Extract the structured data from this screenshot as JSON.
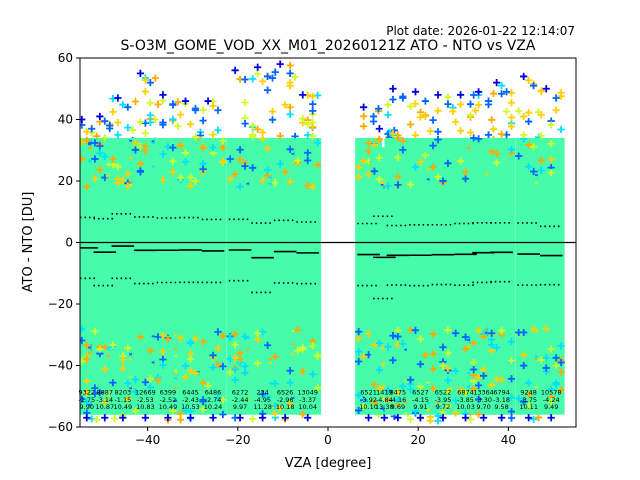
{
  "plot_date": "Plot date: 2026-01-22 12:14:07",
  "chart_data": {
    "type": "scatter",
    "title": "S-O3M_GOME_VOD_XX_M01_20260121Z ATO - NTO vs VZA",
    "xlabel": "VZA [degree]",
    "ylabel": "ATO - NTO [DU]",
    "xlim": [
      -55,
      55
    ],
    "ylim": [
      -60,
      60
    ],
    "xticks": [
      -40,
      -20,
      0,
      20,
      40
    ],
    "yticks": [
      -60,
      -40,
      -20,
      0,
      20,
      40,
      60
    ],
    "zero_line": 0,
    "colors": {
      "density_low": "#46fcaa",
      "density_cyan": "#00e0ff",
      "density_mid": "#cdfc28",
      "density_yellow": "#ffd000",
      "density_orange": "#ffaa00",
      "density_blue": "#0066ff",
      "density_navy": "#0000e6",
      "mean_line": "#000000",
      "std_line": "#000000"
    },
    "columns": [
      {
        "vza": -53.5,
        "n": "9322",
        "mean": "-1.75",
        "std": "9.90",
        "mean_v": -1.75,
        "std_v": 9.9,
        "ymin": -58,
        "ymax": 40
      },
      {
        "vza": -49.5,
        "n": "8887",
        "mean": "-3.14",
        "std": "10.87",
        "mean_v": -3.14,
        "std_v": 10.87,
        "ymin": -59,
        "ymax": 41
      },
      {
        "vza": -45.5,
        "n": "8203",
        "mean": "-1.15",
        "std": "10.49",
        "mean_v": -1.15,
        "std_v": 10.49,
        "ymin": -58,
        "ymax": 47
      },
      {
        "vza": -40.5,
        "n": "12669",
        "mean": "-2.53",
        "std": "10.83",
        "mean_v": -2.53,
        "std_v": 10.83,
        "ymin": -58,
        "ymax": 55
      },
      {
        "vza": -35.5,
        "n": "6399",
        "mean": "-2.52",
        "std": "10.49",
        "mean_v": -2.52,
        "std_v": 10.49,
        "ymin": -58,
        "ymax": 48
      },
      {
        "vza": -30.5,
        "n": "6445",
        "mean": "-2.43",
        "std": "10.53",
        "mean_v": -2.43,
        "std_v": 10.53,
        "ymin": -58,
        "ymax": 46
      },
      {
        "vza": -25.5,
        "n": "6486",
        "mean": "-2.74",
        "std": "10.24",
        "mean_v": -2.74,
        "std_v": 10.24,
        "ymin": -58,
        "ymax": 46
      },
      {
        "vza": -19.5,
        "n": "6272",
        "mean": "-2.44",
        "std": "9.97",
        "mean_v": -2.44,
        "std_v": 9.97,
        "ymin": -58,
        "ymax": 56
      },
      {
        "vza": -14.5,
        "n": "234",
        "mean": "-4.95",
        "std": "11.28",
        "mean_v": -4.95,
        "std_v": 11.28,
        "ymin": -58,
        "ymax": 57
      },
      {
        "vza": -9.5,
        "n": "6526",
        "mean": "-2.96",
        "std": "10.18",
        "mean_v": -2.96,
        "std_v": 10.18,
        "ymin": -58,
        "ymax": 58
      },
      {
        "vza": -4.5,
        "n": "13049",
        "mean": "-3.37",
        "std": "10.04",
        "mean_v": -3.37,
        "std_v": 10.04,
        "ymin": -58,
        "ymax": 48
      },
      {
        "vza": 9.0,
        "n": "6521",
        "mean": "-3.92",
        "std": "10.10",
        "mean_v": -3.92,
        "std_v": 10.1,
        "ymin": -58,
        "ymax": 44
      },
      {
        "vza": 12.5,
        "n": "1419",
        "mean": "-4.84",
        "std": "13.38",
        "mean_v": -4.84,
        "std_v": 13.38,
        "ymin": -58,
        "ymax": 37
      },
      {
        "vza": 15.5,
        "n": "8475",
        "mean": "-4.16",
        "std": "9.69",
        "mean_v": -4.16,
        "std_v": 9.69,
        "ymin": -58,
        "ymax": 50
      },
      {
        "vza": 20.5,
        "n": "6527",
        "mean": "-4.15",
        "std": "9.91",
        "mean_v": -4.15,
        "std_v": 9.91,
        "ymin": -58,
        "ymax": 49
      },
      {
        "vza": 25.5,
        "n": "6522",
        "mean": "-3.95",
        "std": "9.72",
        "mean_v": -3.95,
        "std_v": 9.72,
        "ymin": -58,
        "ymax": 48
      },
      {
        "vza": 30.5,
        "n": "6874",
        "mean": "-3.85",
        "std": "10.03",
        "mean_v": -3.85,
        "std_v": 10.03,
        "ymin": -58,
        "ymax": 48
      },
      {
        "vza": 34.5,
        "n": "13364",
        "mean": "-3.30",
        "std": "9.70",
        "mean_v": -3.3,
        "std_v": 9.7,
        "ymin": -58,
        "ymax": 49
      },
      {
        "vza": 38.5,
        "n": "6794",
        "mean": "-3.18",
        "std": "9.58",
        "mean_v": -3.18,
        "std_v": 9.58,
        "ymin": -58,
        "ymax": 52
      },
      {
        "vza": 44.5,
        "n": "9248",
        "mean": "-3.75",
        "std": "10.11",
        "mean_v": -3.75,
        "std_v": 10.11,
        "ymin": -58,
        "ymax": 54
      },
      {
        "vza": 49.5,
        "n": "10578",
        "mean": "-4.24",
        "std": "9.49",
        "mean_v": -4.24,
        "std_v": 9.49,
        "ymin": -58,
        "ymax": 50
      }
    ]
  }
}
